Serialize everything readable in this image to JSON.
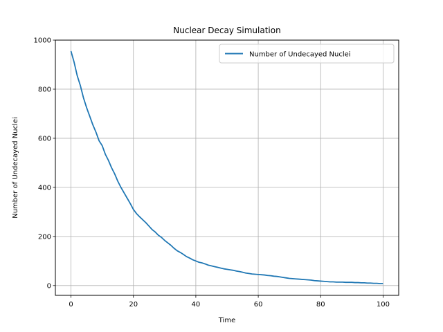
{
  "chart_data": {
    "type": "line",
    "title": "Nuclear Decay Simulation",
    "xlabel": "Time",
    "ylabel": "Number of Undecayed Nuclei",
    "xlim": [
      -5,
      105
    ],
    "ylim": [
      -40,
      1000
    ],
    "xticks": [
      0,
      20,
      40,
      60,
      80,
      100
    ],
    "yticks": [
      0,
      200,
      400,
      600,
      800,
      1000
    ],
    "grid": true,
    "legend_position": "upper right",
    "series": [
      {
        "name": "Number of Undecayed Nuclei",
        "color": "#1f77b4",
        "x": [
          0,
          1,
          2,
          3,
          4,
          5,
          6,
          7,
          8,
          9,
          10,
          11,
          12,
          13,
          14,
          15,
          16,
          17,
          18,
          19,
          20,
          21,
          22,
          23,
          24,
          25,
          26,
          27,
          28,
          29,
          30,
          31,
          32,
          33,
          34,
          35,
          36,
          37,
          38,
          39,
          40,
          41,
          42,
          43,
          44,
          45,
          46,
          47,
          48,
          49,
          50,
          51,
          52,
          53,
          54,
          55,
          56,
          57,
          58,
          59,
          60,
          61,
          62,
          63,
          64,
          65,
          66,
          67,
          68,
          69,
          70,
          71,
          72,
          73,
          74,
          75,
          76,
          77,
          78,
          79,
          80,
          81,
          82,
          83,
          84,
          85,
          86,
          87,
          88,
          89,
          90,
          91,
          92,
          93,
          94,
          95,
          96,
          97,
          98,
          99,
          100
        ],
        "y": [
          955,
          910,
          855,
          815,
          765,
          725,
          690,
          655,
          625,
          590,
          570,
          535,
          510,
          480,
          455,
          425,
          400,
          378,
          356,
          334,
          310,
          293,
          280,
          268,
          256,
          242,
          228,
          218,
          205,
          196,
          184,
          174,
          164,
          152,
          142,
          135,
          127,
          118,
          112,
          105,
          100,
          95,
          92,
          88,
          83,
          80,
          77,
          74,
          71,
          68,
          66,
          64,
          62,
          59,
          57,
          54,
          51,
          49,
          47,
          46,
          45,
          44,
          43,
          41,
          40,
          38,
          37,
          35,
          33,
          31,
          29,
          28,
          27,
          26,
          25,
          24,
          23,
          22,
          20,
          19,
          18,
          17,
          16,
          15,
          15,
          14,
          14,
          14,
          13,
          13,
          13,
          12,
          12,
          11,
          11,
          10,
          10,
          9,
          9,
          8,
          8
        ]
      }
    ]
  }
}
